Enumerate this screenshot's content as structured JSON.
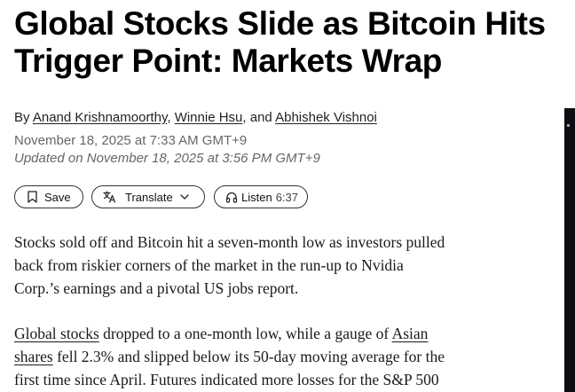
{
  "article": {
    "headline_line1": "Global Stocks Slide as Bitcoin Hits",
    "headline_line2": "Trigger Point: Markets Wrap",
    "byline": {
      "prefix": "By ",
      "authors": [
        "Anand Krishnamoorthy",
        "Winnie Hsu",
        "Abhishek Vishnoi"
      ],
      "sep1": ", ",
      "sep2": ", and "
    },
    "published": "November 18, 2025 at 7:33 AM GMT+9",
    "updated": "Updated on November 18, 2025 at 3:56 PM GMT+9"
  },
  "toolbar": {
    "save_label": "Save",
    "translate_label": "Translate",
    "listen_label": "Listen",
    "listen_duration": "6:37"
  },
  "body": {
    "p1_lines": [
      "Stocks sold off and Bitcoin hit a seven-month low as investors pulled",
      "back from riskier corners of the market in the run-up to Nvidia",
      "Corp.’s earnings and a pivotal US jobs report."
    ],
    "p2": {
      "link1": "Global stocks",
      "l1_mid": " dropped to a one-month low, while a gauge of ",
      "link2_part1": "Asian",
      "link2_part2": "shares",
      "l2_rest": " fell 2.3% and slipped below its 50-day moving average for the",
      "l3": "first time since April. Futures indicated more losses for the S&P 500"
    }
  }
}
